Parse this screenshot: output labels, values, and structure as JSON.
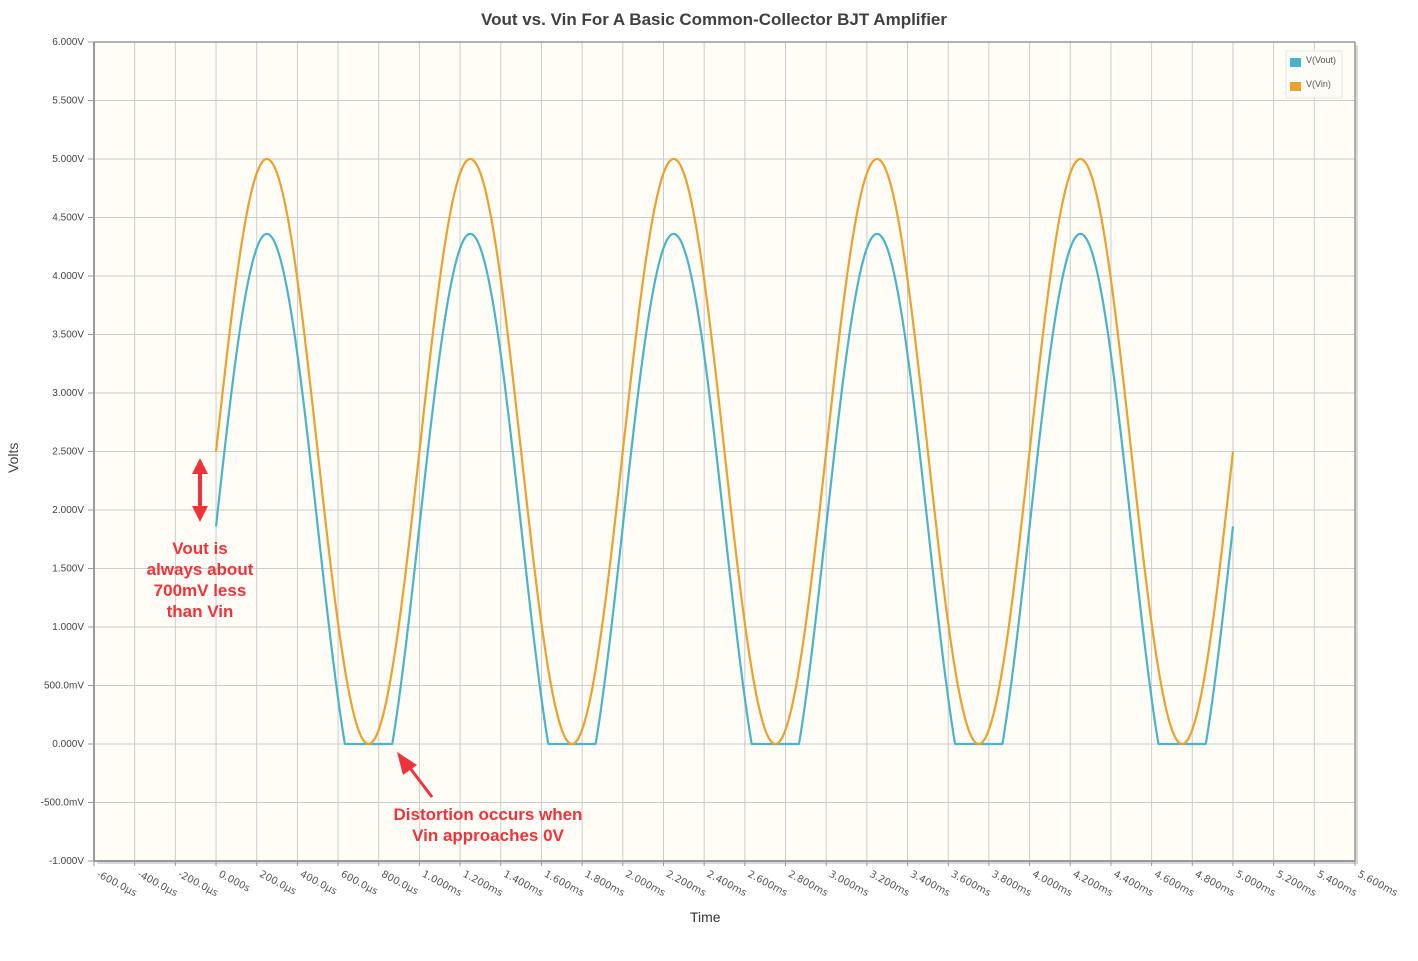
{
  "chart_data": {
    "type": "line",
    "title": "Vout vs. Vin For A Basic Common-Collector BJT Amplifier",
    "xlabel": "Time",
    "ylabel": "Volts",
    "xlim_s": [
      -0.0006,
      0.0056
    ],
    "ylim": [
      -1.0,
      6.0
    ],
    "grid": true,
    "legend_position": "top-right",
    "y_ticks": [
      "6.000V",
      "5.500V",
      "5.000V",
      "4.500V",
      "4.000V",
      "3.500V",
      "3.000V",
      "2.500V",
      "2.000V",
      "1.500V",
      "1.000V",
      "500.0mV",
      "0.000V",
      "-500.0mV",
      "-1.000V"
    ],
    "y_tick_values": [
      6.0,
      5.5,
      5.0,
      4.5,
      4.0,
      3.5,
      3.0,
      2.5,
      2.0,
      1.5,
      1.0,
      0.5,
      0.0,
      -0.5,
      -1.0
    ],
    "x_ticks": [
      "-600.0µs",
      "-400.0µs",
      "-200.0µs",
      "0.000s",
      "200.0µs",
      "400.0µs",
      "600.0µs",
      "800.0µs",
      "1.000ms",
      "1.200ms",
      "1.400ms",
      "1.600ms",
      "1.800ms",
      "2.000ms",
      "2.200ms",
      "2.400ms",
      "2.600ms",
      "2.800ms",
      "3.000ms",
      "3.200ms",
      "3.400ms",
      "3.600ms",
      "3.800ms",
      "4.000ms",
      "4.200ms",
      "4.400ms",
      "4.600ms",
      "4.800ms",
      "5.000ms",
      "5.200ms",
      "5.400ms",
      "5.600ms"
    ],
    "series": [
      {
        "name": "V(Vout)",
        "color": "#4bb3c8",
        "description": "Clipped sine, offset ~0.64V below Vin; flat at 0V near Vin minima",
        "x_ms": [
          0,
          0.25,
          0.5,
          0.65,
          0.75,
          0.85,
          1.0,
          1.25,
          1.5,
          1.75,
          2.0,
          2.25,
          2.5,
          2.75,
          3.0,
          3.25,
          3.5,
          3.75,
          4.0,
          4.25,
          4.5,
          4.75,
          5.0
        ],
        "values": [
          1.88,
          4.36,
          1.88,
          0.0,
          0.0,
          0.0,
          1.88,
          4.36,
          1.88,
          0.0,
          1.88,
          4.36,
          1.88,
          0.0,
          1.88,
          4.36,
          1.88,
          0.0,
          1.88,
          4.36,
          1.88,
          0.0,
          1.88
        ]
      },
      {
        "name": "V(Vin)",
        "color": "#eaa12d",
        "description": "Sine 2.5V offset, 2.5V amplitude, 1kHz",
        "x_ms": [
          0,
          0.25,
          0.5,
          0.75,
          1.0,
          1.25,
          1.5,
          1.75,
          2.0,
          2.25,
          2.5,
          2.75,
          3.0,
          3.25,
          3.5,
          3.75,
          4.0,
          4.25,
          4.5,
          4.75,
          5.0
        ],
        "values": [
          2.5,
          5.0,
          2.5,
          0.0,
          2.5,
          5.0,
          2.5,
          0.0,
          2.5,
          5.0,
          2.5,
          0.0,
          2.5,
          5.0,
          2.5,
          0.0,
          2.5,
          5.0,
          2.5,
          0.0,
          2.5
        ]
      }
    ],
    "annotations": [
      {
        "text": "Vout is always about 700mV less than Vin",
        "lines": [
          "Vout is",
          "always about",
          "700mV less",
          "than Vin"
        ],
        "color": "#f0333a"
      },
      {
        "text": "Distortion occurs when Vin approaches 0V",
        "lines": [
          "Distortion occurs when",
          "Vin approaches 0V"
        ],
        "color": "#f0333a"
      }
    ]
  },
  "legend": [
    {
      "label": "V(Vout)",
      "color": "#4bb3c8"
    },
    {
      "label": "V(Vin)",
      "color": "#eaa12d"
    }
  ],
  "colors": {
    "plot_bg": "#fffdf6",
    "grid": "#cccccc",
    "axis": "#999999",
    "annotation": "#f0333a"
  }
}
